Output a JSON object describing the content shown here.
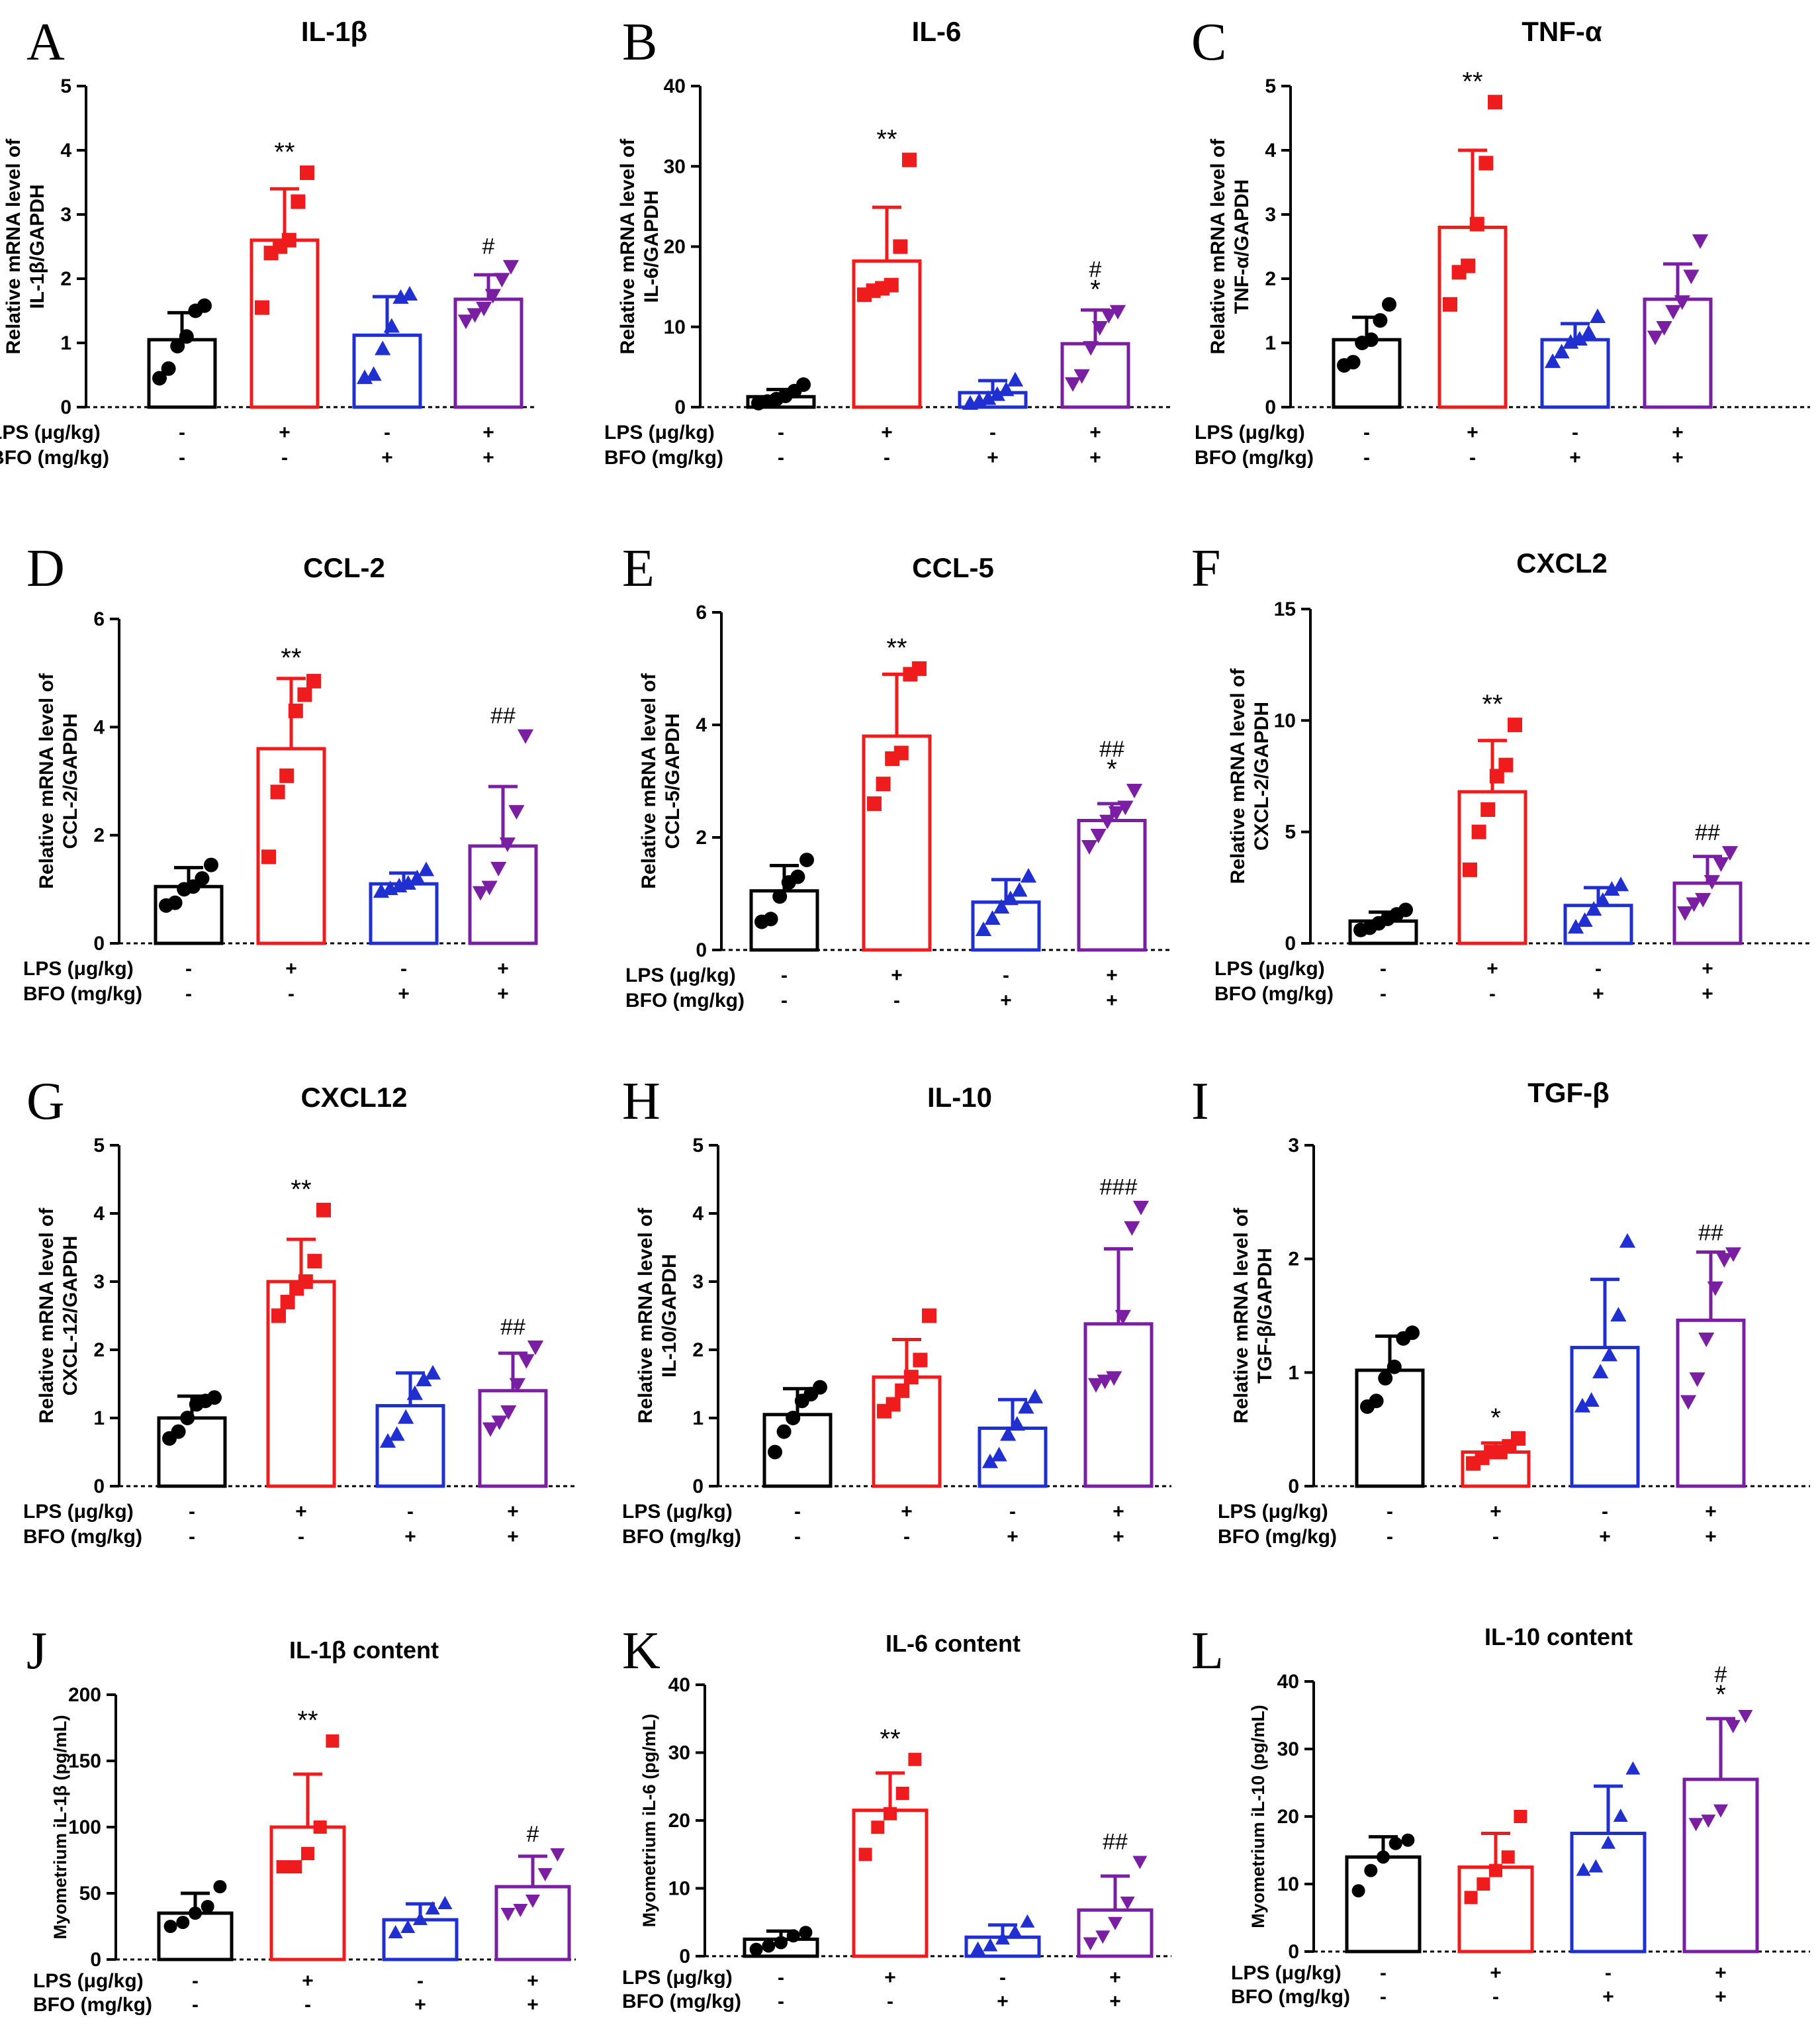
{
  "colors": {
    "group_1": "#000000",
    "group_2": "#ee1c1c",
    "group_3": "#1f2fd0",
    "group_4": "#7a1fa2"
  },
  "treatment_labels": [
    "LPS (μg/kg)",
    "BFO (mg/kg)"
  ],
  "treatment_signs": {
    "LPS": [
      "-",
      "+",
      "-",
      "+"
    ],
    "BFO": [
      "-",
      "-",
      "+",
      "+"
    ]
  },
  "chart_data": [
    {
      "panel": "A",
      "type": "bar",
      "title": "IL-1β",
      "ylabel": [
        "Relative mRNA level of",
        "IL-1β/GAPDH"
      ],
      "ylim": [
        0,
        5
      ],
      "yticks": [
        0,
        1,
        2,
        3,
        4,
        5
      ],
      "marker": [
        "circle",
        "square",
        "triangle",
        "triangle-down"
      ],
      "series": [
        {
          "name": "LPS- BFO-",
          "mean": 1.05,
          "sd": 0.42,
          "points": [
            0.45,
            0.6,
            0.95,
            1.1,
            1.5,
            1.58
          ],
          "sig": ""
        },
        {
          "name": "LPS+ BFO-",
          "mean": 2.6,
          "sd": 0.8,
          "points": [
            1.55,
            2.4,
            2.5,
            2.6,
            3.2,
            3.65
          ],
          "sig": "**"
        },
        {
          "name": "LPS- BFO+",
          "mean": 1.12,
          "sd": 0.6,
          "points": [
            0.45,
            0.5,
            0.9,
            1.25,
            1.7,
            1.75
          ],
          "sig": ""
        },
        {
          "name": "LPS+ BFO+",
          "mean": 1.68,
          "sd": 0.38,
          "points": [
            1.35,
            1.45,
            1.55,
            1.75,
            2.0,
            2.2
          ],
          "sig": "#"
        }
      ]
    },
    {
      "panel": "B",
      "type": "bar",
      "title": "IL-6",
      "ylabel": [
        "Relative mRNA level of",
        "IL-6/GAPDH"
      ],
      "ylim": [
        0,
        40
      ],
      "yticks": [
        0,
        10,
        20,
        30,
        40
      ],
      "marker": [
        "circle",
        "square",
        "triangle",
        "triangle-down"
      ],
      "series": [
        {
          "name": "LPS- BFO-",
          "mean": 1.3,
          "sd": 0.9,
          "points": [
            0.5,
            0.7,
            1.0,
            1.4,
            2.0,
            2.8
          ],
          "sig": ""
        },
        {
          "name": "LPS+ BFO-",
          "mean": 18.2,
          "sd": 6.7,
          "points": [
            14.0,
            14.5,
            14.8,
            15.2,
            20.0,
            30.8
          ],
          "sig": "**"
        },
        {
          "name": "LPS- BFO+",
          "mean": 1.8,
          "sd": 1.5,
          "points": [
            0.4,
            0.7,
            1.0,
            1.5,
            2.1,
            3.3
          ],
          "sig": ""
        },
        {
          "name": "LPS+ BFO+",
          "mean": 7.9,
          "sd": 4.2,
          "points": [
            3.0,
            4.0,
            7.5,
            10.0,
            11.5,
            12.0
          ],
          "sig": "#\n*"
        }
      ]
    },
    {
      "panel": "C",
      "type": "bar",
      "title": "TNF-α",
      "ylabel": [
        "Relative mRNA level of",
        "TNF-α/GAPDH"
      ],
      "ylim": [
        0,
        5
      ],
      "yticks": [
        0,
        1,
        2,
        3,
        4,
        5
      ],
      "marker": [
        "circle",
        "square",
        "triangle",
        "triangle-down"
      ],
      "series": [
        {
          "name": "LPS- BFO-",
          "mean": 1.05,
          "sd": 0.35,
          "points": [
            0.65,
            0.7,
            1.0,
            1.05,
            1.35,
            1.6
          ],
          "sig": ""
        },
        {
          "name": "LPS+ BFO-",
          "mean": 2.8,
          "sd": 1.2,
          "points": [
            1.6,
            2.1,
            2.2,
            2.85,
            3.8,
            4.75
          ],
          "sig": "**"
        },
        {
          "name": "LPS- BFO+",
          "mean": 1.05,
          "sd": 0.25,
          "points": [
            0.7,
            0.85,
            1.0,
            1.05,
            1.15,
            1.4
          ],
          "sig": ""
        },
        {
          "name": "LPS+ BFO+",
          "mean": 1.68,
          "sd": 0.55,
          "points": [
            1.1,
            1.25,
            1.5,
            1.65,
            2.05,
            2.6
          ],
          "sig": ""
        }
      ]
    },
    {
      "panel": "D",
      "type": "bar",
      "title": "CCL-2",
      "ylabel": [
        "Relative mRNA level of",
        "CCL-2/GAPDH"
      ],
      "ylim": [
        0,
        6
      ],
      "yticks": [
        0,
        2,
        4,
        6
      ],
      "marker": [
        "circle",
        "square",
        "triangle",
        "triangle-down"
      ],
      "series": [
        {
          "name": "LPS- BFO-",
          "mean": 1.05,
          "sd": 0.35,
          "points": [
            0.7,
            0.75,
            1.0,
            1.05,
            1.2,
            1.45
          ],
          "sig": ""
        },
        {
          "name": "LPS+ BFO-",
          "mean": 3.6,
          "sd": 1.3,
          "points": [
            1.6,
            2.8,
            3.1,
            4.3,
            4.6,
            4.85
          ],
          "sig": "**"
        },
        {
          "name": "LPS- BFO+",
          "mean": 1.1,
          "sd": 0.2,
          "points": [
            0.95,
            1.0,
            1.05,
            1.1,
            1.2,
            1.35
          ],
          "sig": ""
        },
        {
          "name": "LPS+ BFO+",
          "mean": 1.8,
          "sd": 1.1,
          "points": [
            0.95,
            1.05,
            1.4,
            1.85,
            2.45,
            3.85
          ],
          "sig": "##"
        }
      ]
    },
    {
      "panel": "E",
      "type": "bar",
      "title": "CCL-5",
      "ylabel": [
        "Relative mRNA level of",
        "CCL-5/GAPDH"
      ],
      "ylim": [
        0,
        6
      ],
      "yticks": [
        0,
        2,
        4,
        6
      ],
      "marker": [
        "circle",
        "square",
        "triangle",
        "triangle-down"
      ],
      "series": [
        {
          "name": "LPS- BFO-",
          "mean": 1.05,
          "sd": 0.45,
          "points": [
            0.5,
            0.55,
            0.95,
            1.2,
            1.3,
            1.6
          ],
          "sig": ""
        },
        {
          "name": "LPS+ BFO-",
          "mean": 3.8,
          "sd": 1.1,
          "points": [
            2.6,
            2.95,
            3.4,
            3.5,
            4.9,
            5.0
          ],
          "sig": "**"
        },
        {
          "name": "LPS- BFO+",
          "mean": 0.85,
          "sd": 0.4,
          "points": [
            0.35,
            0.55,
            0.75,
            0.9,
            1.05,
            1.3
          ],
          "sig": ""
        },
        {
          "name": "LPS+ BFO+",
          "mean": 2.3,
          "sd": 0.3,
          "points": [
            1.85,
            2.05,
            2.3,
            2.45,
            2.55,
            2.85
          ],
          "sig": "##\n*"
        }
      ]
    },
    {
      "panel": "F",
      "type": "bar",
      "title": "CXCL2",
      "ylabel": [
        "Relative mRNA level of",
        "CXCL-2/GAPDH"
      ],
      "ylim": [
        0,
        15
      ],
      "yticks": [
        0,
        5,
        10,
        15
      ],
      "marker": [
        "circle",
        "square",
        "triangle",
        "triangle-down"
      ],
      "series": [
        {
          "name": "LPS- BFO-",
          "mean": 1.0,
          "sd": 0.4,
          "points": [
            0.6,
            0.7,
            0.9,
            1.1,
            1.3,
            1.5
          ],
          "sig": ""
        },
        {
          "name": "LPS+ BFO-",
          "mean": 6.8,
          "sd": 2.3,
          "points": [
            3.3,
            5.0,
            6.0,
            7.5,
            8.0,
            9.8
          ],
          "sig": "**"
        },
        {
          "name": "LPS- BFO+",
          "mean": 1.7,
          "sd": 0.8,
          "points": [
            0.7,
            1.0,
            1.5,
            1.9,
            2.4,
            2.6
          ],
          "sig": ""
        },
        {
          "name": "LPS+ BFO+",
          "mean": 2.7,
          "sd": 1.2,
          "points": [
            1.4,
            1.8,
            2.0,
            2.8,
            3.6,
            4.1
          ],
          "sig": "##"
        }
      ]
    },
    {
      "panel": "G",
      "type": "bar",
      "title": "CXCL12",
      "ylabel": [
        "Relative mRNA level of",
        "CXCL-12/GAPDH"
      ],
      "ylim": [
        0,
        5
      ],
      "yticks": [
        0,
        1,
        2,
        3,
        4,
        5
      ],
      "marker": [
        "circle",
        "square",
        "triangle",
        "triangle-down"
      ],
      "series": [
        {
          "name": "LPS- BFO-",
          "mean": 1.0,
          "sd": 0.32,
          "points": [
            0.7,
            0.8,
            1.0,
            1.2,
            1.25,
            1.3
          ],
          "sig": ""
        },
        {
          "name": "LPS+ BFO-",
          "mean": 3.0,
          "sd": 0.62,
          "points": [
            2.5,
            2.7,
            2.9,
            3.0,
            3.3,
            4.05
          ],
          "sig": "**"
        },
        {
          "name": "LPS- BFO+",
          "mean": 1.18,
          "sd": 0.48,
          "points": [
            0.65,
            0.75,
            1.0,
            1.35,
            1.55,
            1.65
          ],
          "sig": ""
        },
        {
          "name": "LPS+ BFO+",
          "mean": 1.4,
          "sd": 0.55,
          "points": [
            0.85,
            0.95,
            1.1,
            1.5,
            1.85,
            2.05
          ],
          "sig": "##"
        }
      ]
    },
    {
      "panel": "H",
      "type": "bar",
      "title": "IL-10",
      "ylabel": [
        "Relative mRNA level of",
        "IL-10/GAPDH"
      ],
      "ylim": [
        0,
        5
      ],
      "yticks": [
        0,
        1,
        2,
        3,
        4,
        5
      ],
      "marker": [
        "circle",
        "square",
        "triangle",
        "triangle-down"
      ],
      "series": [
        {
          "name": "LPS- BFO-",
          "mean": 1.05,
          "sd": 0.38,
          "points": [
            0.5,
            0.8,
            1.0,
            1.25,
            1.35,
            1.45
          ],
          "sig": ""
        },
        {
          "name": "LPS+ BFO-",
          "mean": 1.6,
          "sd": 0.55,
          "points": [
            1.1,
            1.2,
            1.4,
            1.6,
            1.85,
            2.5
          ],
          "sig": ""
        },
        {
          "name": "LPS- BFO+",
          "mean": 0.85,
          "sd": 0.42,
          "points": [
            0.35,
            0.45,
            0.75,
            0.9,
            1.15,
            1.3
          ],
          "sig": ""
        },
        {
          "name": "LPS+ BFO+",
          "mean": 2.38,
          "sd": 1.1,
          "points": [
            1.5,
            1.55,
            1.6,
            2.5,
            3.8,
            4.1
          ],
          "sig": "###"
        }
      ]
    },
    {
      "panel": "I",
      "type": "bar",
      "title": "TGF-β",
      "ylabel": [
        "Relative mRNA level of",
        "TGF-β/GAPDH"
      ],
      "ylim": [
        0,
        3
      ],
      "yticks": [
        0,
        1,
        2,
        3
      ],
      "marker": [
        "circle",
        "square",
        "triangle",
        "triangle-down"
      ],
      "series": [
        {
          "name": "LPS- BFO-",
          "mean": 1.02,
          "sd": 0.3,
          "points": [
            0.7,
            0.75,
            0.95,
            1.05,
            1.3,
            1.35
          ],
          "sig": ""
        },
        {
          "name": "LPS+ BFO-",
          "mean": 0.3,
          "sd": 0.08,
          "points": [
            0.2,
            0.25,
            0.3,
            0.3,
            0.35,
            0.42
          ],
          "sig": "*"
        },
        {
          "name": "LPS- BFO+",
          "mean": 1.22,
          "sd": 0.6,
          "points": [
            0.7,
            0.75,
            1.0,
            1.15,
            1.5,
            2.15
          ],
          "sig": ""
        },
        {
          "name": "LPS+ BFO+",
          "mean": 1.46,
          "sd": 0.6,
          "points": [
            0.75,
            0.95,
            1.3,
            1.75,
            2.0,
            2.05
          ],
          "sig": "##"
        }
      ]
    },
    {
      "panel": "J",
      "type": "bar",
      "title": "IL-1β content",
      "ylabel": [
        "Myometrium iL-1β (pg/mL)"
      ],
      "ylim": [
        0,
        200
      ],
      "yticks": [
        0,
        50,
        100,
        150,
        200
      ],
      "marker": [
        "circle",
        "square",
        "triangle",
        "triangle-down"
      ],
      "series": [
        {
          "name": "LPS- BFO-",
          "mean": 35,
          "sd": 15,
          "points": [
            25,
            28,
            35,
            40,
            55
          ],
          "sig": ""
        },
        {
          "name": "LPS+ BFO-",
          "mean": 100,
          "sd": 40,
          "points": [
            70,
            70,
            80,
            100,
            165
          ],
          "sig": "**"
        },
        {
          "name": "LPS- BFO+",
          "mean": 30,
          "sd": 12,
          "points": [
            20,
            24,
            30,
            38,
            42
          ],
          "sig": ""
        },
        {
          "name": "LPS+ BFO+",
          "mean": 55,
          "sd": 23,
          "points": [
            35,
            38,
            45,
            65,
            80
          ],
          "sig": "#"
        }
      ]
    },
    {
      "panel": "K",
      "type": "bar",
      "title": "IL-6 content",
      "ylabel": [
        "Myometrium iL-6 (pg/mL)"
      ],
      "ylim": [
        0,
        40
      ],
      "yticks": [
        0,
        10,
        20,
        30,
        40
      ],
      "marker": [
        "circle",
        "square",
        "triangle",
        "triangle-down"
      ],
      "series": [
        {
          "name": "LPS- BFO-",
          "mean": 2.5,
          "sd": 1.2,
          "points": [
            1.0,
            1.5,
            2.0,
            3.0,
            3.5
          ],
          "sig": ""
        },
        {
          "name": "LPS+ BFO-",
          "mean": 21.5,
          "sd": 5.5,
          "points": [
            15,
            19,
            21,
            24,
            29
          ],
          "sig": "**"
        },
        {
          "name": "LPS- BFO+",
          "mean": 2.8,
          "sd": 1.8,
          "points": [
            1.0,
            1.5,
            2.5,
            3.5,
            5.0
          ],
          "sig": ""
        },
        {
          "name": "LPS+ BFO+",
          "mean": 6.8,
          "sd": 5.0,
          "points": [
            2.0,
            3.0,
            5.0,
            8.0,
            14.0
          ],
          "sig": "##"
        }
      ]
    },
    {
      "panel": "L",
      "type": "bar",
      "title": "IL-10 content",
      "ylabel": [
        "Myometrium iL-10 (pg/mL)"
      ],
      "ylim": [
        0,
        40
      ],
      "yticks": [
        0,
        10,
        20,
        30,
        40
      ],
      "marker": [
        "circle",
        "square",
        "triangle",
        "triangle-down"
      ],
      "series": [
        {
          "name": "LPS- BFO-",
          "mean": 14,
          "sd": 3,
          "points": [
            9,
            12,
            14,
            16,
            16.5
          ],
          "sig": ""
        },
        {
          "name": "LPS+ BFO-",
          "mean": 12.5,
          "sd": 5,
          "points": [
            8,
            10,
            12,
            14,
            20
          ],
          "sig": ""
        },
        {
          "name": "LPS- BFO+",
          "mean": 17.5,
          "sd": 7,
          "points": [
            12,
            12.5,
            16,
            20,
            27
          ],
          "sig": ""
        },
        {
          "name": "LPS+ BFO+",
          "mean": 25.5,
          "sd": 9,
          "points": [
            19,
            19.5,
            21,
            33.5,
            35
          ],
          "sig": "#\n*"
        }
      ]
    }
  ]
}
